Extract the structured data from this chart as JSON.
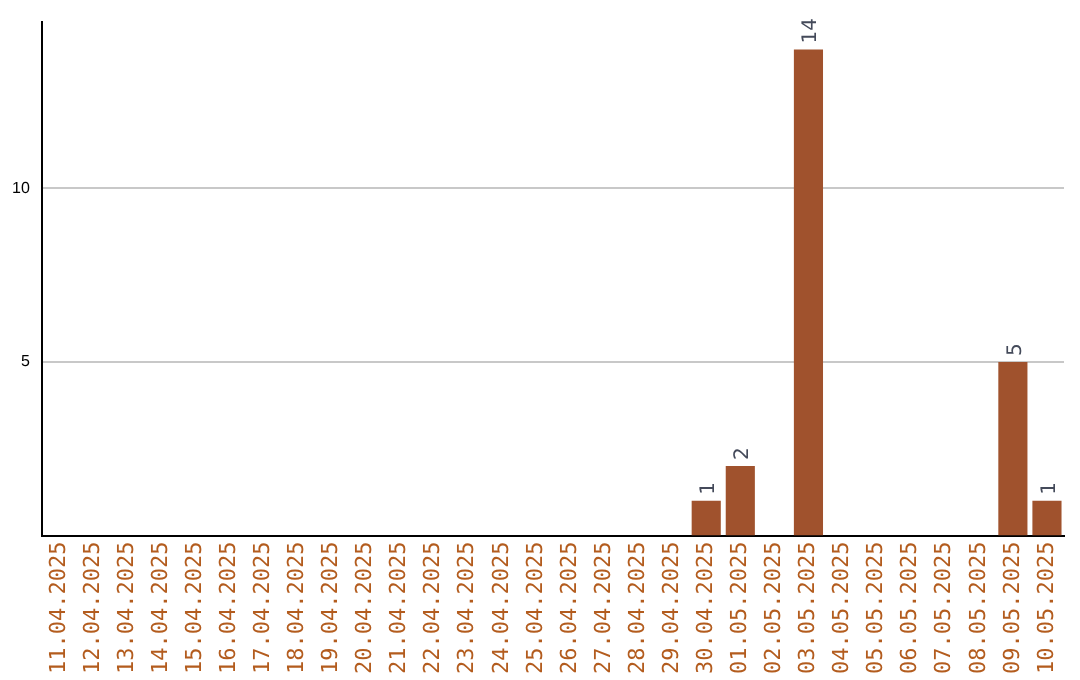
{
  "chart_data": {
    "type": "bar",
    "categories": [
      "11.04.2025",
      "12.04.2025",
      "13.04.2025",
      "14.04.2025",
      "15.04.2025",
      "16.04.2025",
      "17.04.2025",
      "18.04.2025",
      "19.04.2025",
      "20.04.2025",
      "21.04.2025",
      "22.04.2025",
      "23.04.2025",
      "24.04.2025",
      "25.04.2025",
      "26.04.2025",
      "27.04.2025",
      "28.04.2025",
      "29.04.2025",
      "30.04.2025",
      "01.05.2025",
      "02.05.2025",
      "03.05.2025",
      "04.05.2025",
      "05.05.2025",
      "06.05.2025",
      "07.05.2025",
      "08.05.2025",
      "09.05.2025",
      "10.05.2025"
    ],
    "values": [
      0,
      0,
      0,
      0,
      0,
      0,
      0,
      0,
      0,
      0,
      0,
      0,
      0,
      0,
      0,
      0,
      0,
      0,
      0,
      1,
      2,
      0,
      14,
      0,
      0,
      0,
      0,
      0,
      5,
      1
    ],
    "value_labels": [
      null,
      null,
      null,
      null,
      null,
      null,
      null,
      null,
      null,
      null,
      null,
      null,
      null,
      null,
      null,
      null,
      null,
      null,
      null,
      "1",
      "2",
      null,
      "14",
      null,
      null,
      null,
      null,
      null,
      "5",
      "1"
    ],
    "color": "#a0522d",
    "ylim": [
      0,
      14.8
    ],
    "yticks": [
      5,
      10
    ],
    "grid": "y",
    "legend": false
  }
}
